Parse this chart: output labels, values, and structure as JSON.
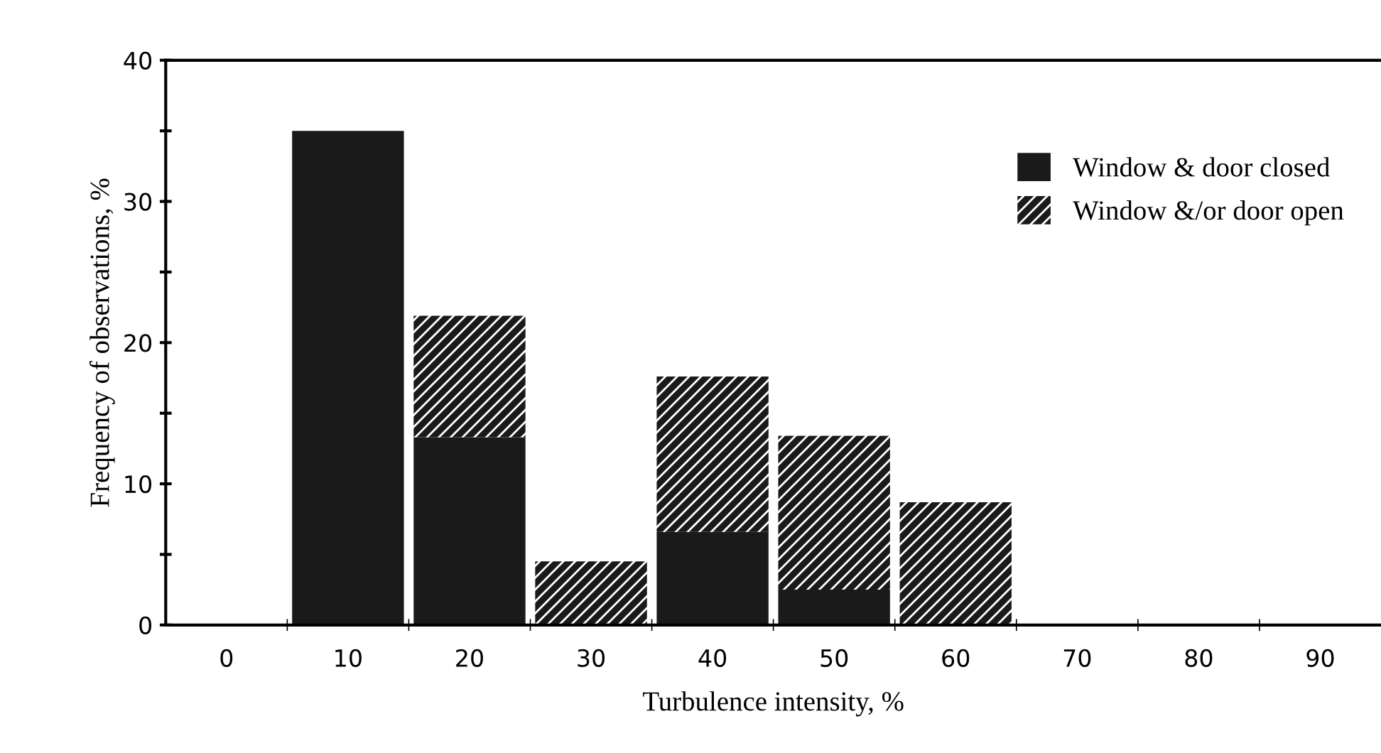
{
  "chart_data": {
    "type": "bar",
    "stacked": true,
    "xlabel": "Turbulence intensity, %",
    "ylabel": "Frequency of observations, %",
    "categories": [
      "0",
      "10",
      "20",
      "30",
      "40",
      "50",
      "60",
      "70",
      "80",
      "90"
    ],
    "series": [
      {
        "name": "Window & door closed",
        "color": "#1a1a1a",
        "values": [
          null,
          35,
          13.3,
          0,
          6.6,
          2.5,
          0,
          null,
          null,
          null
        ]
      },
      {
        "name": "Window &/or door open",
        "color": "#1a1a1a",
        "values": [
          null,
          0,
          8.6,
          4.5,
          11.0,
          10.9,
          8.7,
          null,
          null,
          null
        ]
      }
    ],
    "ylim": [
      0,
      40
    ],
    "yticks": [
      0,
      {
        "value": 5,
        "label": null
      },
      10,
      {
        "value": 15,
        "label": null
      },
      20,
      {
        "value": 25,
        "label": null
      },
      30,
      {
        "value": 35,
        "label": null
      },
      40
    ],
    "legend": "top right",
    "grid": false
  }
}
